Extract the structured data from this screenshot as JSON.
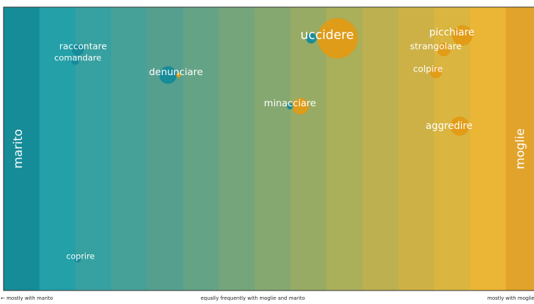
{
  "chart_data": {
    "type": "bubble",
    "xlim": [
      -1,
      1
    ],
    "ylim": [
      0,
      1
    ],
    "words": [
      "uccidere",
      "picchiare",
      "strangolare",
      "raccontare",
      "comandare",
      "denunciare",
      "colpire",
      "minacciare",
      "aggredire",
      "coprire"
    ],
    "label_x": [
      0.22,
      0.69,
      0.63,
      -0.7,
      -0.72,
      -0.35,
      0.6,
      0.08,
      0.68,
      -0.71
    ],
    "label_y": [
      0.9,
      0.91,
      0.86,
      0.86,
      0.82,
      0.77,
      0.78,
      0.66,
      0.58,
      0.12
    ],
    "series": [
      {
        "name": "marito",
        "color": "#12899a",
        "x": [
          0.16,
          null,
          null,
          -0.72,
          -0.73,
          -0.38,
          null,
          0.08,
          null,
          -0.72
        ],
        "y": [
          0.89,
          null,
          null,
          0.85,
          0.81,
          0.76,
          null,
          0.65,
          null,
          0.11
        ],
        "sizes": [
          49,
          null,
          null,
          64,
          25,
          144,
          null,
          16,
          null,
          16
        ]
      },
      {
        "name": "moglie",
        "color": "#e39a12",
        "x": [
          0.26,
          0.73,
          0.66,
          null,
          null,
          -0.34,
          0.63,
          0.12,
          0.72,
          null
        ],
        "y": [
          0.89,
          0.9,
          0.85,
          null,
          null,
          0.76,
          0.77,
          0.65,
          0.58,
          null
        ],
        "sizes": [
          784,
          196,
          81,
          null,
          null,
          9,
          64,
          121,
          169,
          null
        ]
      }
    ],
    "axis_left": "← mostly with marito",
    "axis_center": "equally frequently with moglie and marito",
    "axis_right": "mostly with moglie →"
  }
}
